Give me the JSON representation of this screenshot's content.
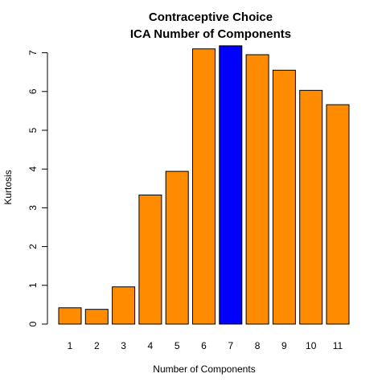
{
  "chart_data": {
    "type": "bar",
    "title": "Contraceptive Choice",
    "subtitle": "ICA Number of Components",
    "xlabel": "Number of Components",
    "ylabel": "Kurtosis",
    "categories": [
      "1",
      "2",
      "3",
      "4",
      "5",
      "6",
      "7",
      "8",
      "9",
      "10",
      "11"
    ],
    "values": [
      0.42,
      0.38,
      0.96,
      3.33,
      3.94,
      7.1,
      7.18,
      6.95,
      6.55,
      6.03,
      5.66
    ],
    "highlight_index": 6,
    "ylim": [
      0,
      7.3
    ],
    "yticks": [
      "0",
      "1",
      "2",
      "3",
      "4",
      "5",
      "6",
      "7"
    ],
    "colors": {
      "bar": "#FF8C00",
      "highlight": "#0000FF",
      "stroke": "#000000"
    },
    "grid": false,
    "legend": "none"
  }
}
